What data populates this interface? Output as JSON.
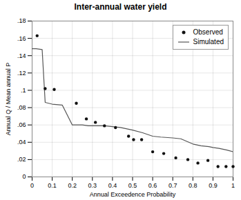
{
  "chart_data": {
    "type": "line",
    "title": "Inter-annual water yield",
    "xlabel": "Annual Exceedence Probability",
    "ylabel": "Annual Q / Mean annual P",
    "xlim": [
      0,
      1
    ],
    "ylim": [
      0,
      0.18
    ],
    "xticks": [
      0,
      0.1,
      0.2,
      0.3,
      0.4,
      0.5,
      0.6,
      0.7,
      0.8,
      0.9,
      1
    ],
    "yticks": [
      0,
      {
        "value": 0.02,
        "label": ".02"
      },
      {
        "value": 0.04,
        "label": ".04"
      },
      {
        "value": 0.06,
        "label": ".06"
      },
      {
        "value": 0.08,
        "label": ".08"
      },
      {
        "value": 0.1,
        "label": ".1"
      },
      {
        "value": 0.12,
        "label": ".12"
      },
      {
        "value": 0.14,
        "label": ".14"
      },
      {
        "value": 0.16,
        "label": ".16"
      },
      {
        "value": 0.18,
        "label": ".18"
      }
    ],
    "grid": true,
    "legend": "upper right",
    "series": [
      {
        "name": "Observed",
        "type": "scatter",
        "marker": "circle",
        "color": "#111111",
        "x": [
          0.025,
          0.065,
          0.11,
          0.22,
          0.27,
          0.315,
          0.36,
          0.415,
          0.48,
          0.505,
          0.545,
          0.6,
          0.655,
          0.715,
          0.775,
          0.825,
          0.875,
          0.925,
          0.965,
          1.0
        ],
        "values": [
          0.163,
          0.102,
          0.101,
          0.085,
          0.067,
          0.063,
          0.059,
          0.057,
          0.047,
          0.043,
          0.043,
          0.029,
          0.027,
          0.022,
          0.02,
          0.016,
          0.019,
          0.012,
          0.012,
          0.012
        ]
      },
      {
        "name": "Simulated",
        "type": "line",
        "line_style": "solid",
        "color": "#555555",
        "x": [
          0.0,
          0.02,
          0.05,
          0.065,
          0.1,
          0.15,
          0.2,
          0.25,
          0.28,
          0.3,
          0.33,
          0.36,
          0.4,
          0.44,
          0.5,
          0.55,
          0.6,
          0.64,
          0.7,
          0.74,
          0.8,
          0.84,
          0.88,
          0.9,
          0.93,
          0.95,
          0.97,
          1.0
        ],
        "values": [
          0.148,
          0.148,
          0.147,
          0.086,
          0.084,
          0.083,
          0.06,
          0.06,
          0.059,
          0.059,
          0.059,
          0.059,
          0.058,
          0.057,
          0.054,
          0.051,
          0.047,
          0.046,
          0.045,
          0.044,
          0.038,
          0.036,
          0.035,
          0.034,
          0.033,
          0.032,
          0.031,
          0.029
        ]
      }
    ]
  }
}
